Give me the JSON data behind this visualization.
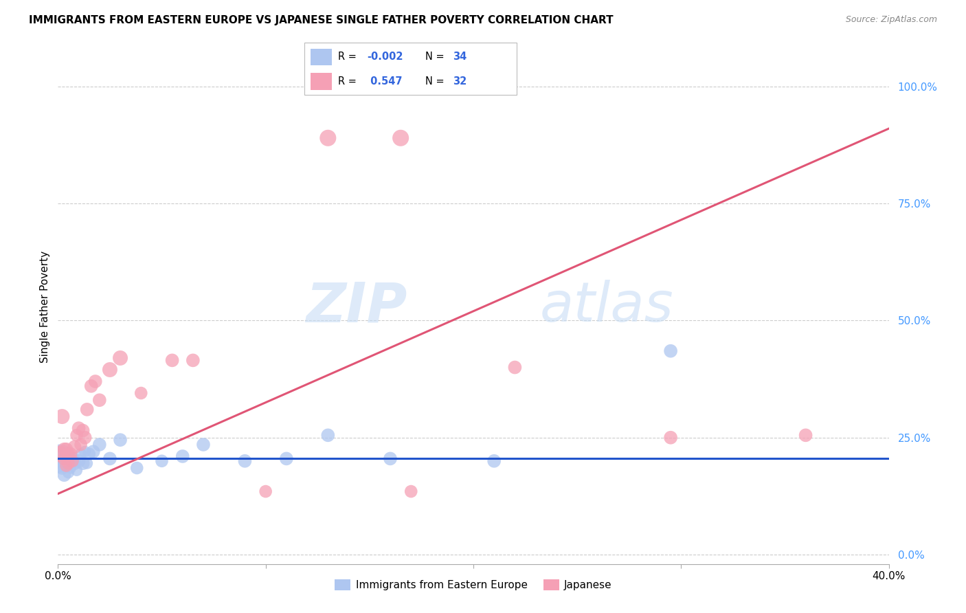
{
  "title": "IMMIGRANTS FROM EASTERN EUROPE VS JAPANESE SINGLE FATHER POVERTY CORRELATION CHART",
  "source": "Source: ZipAtlas.com",
  "ylabel": "Single Father Poverty",
  "ytick_values": [
    0.0,
    0.25,
    0.5,
    0.75,
    1.0
  ],
  "xlim": [
    0.0,
    0.4
  ],
  "ylim": [
    -0.02,
    1.08
  ],
  "legend1_color": "#aec6f0",
  "legend2_color": "#f5a0b5",
  "line1_color": "#2255cc",
  "line2_color": "#e05575",
  "watermark_zip": "ZIP",
  "watermark_atlas": "atlas",
  "series1_label": "Immigrants from Eastern Europe",
  "series2_label": "Japanese",
  "blue_line_y0": 0.205,
  "blue_line_y1": 0.205,
  "pink_line_y0": 0.13,
  "pink_line_y1": 0.91,
  "blue_x": [
    0.001,
    0.002,
    0.002,
    0.003,
    0.003,
    0.004,
    0.004,
    0.005,
    0.005,
    0.006,
    0.006,
    0.007,
    0.008,
    0.009,
    0.01,
    0.011,
    0.012,
    0.013,
    0.014,
    0.015,
    0.017,
    0.02,
    0.025,
    0.03,
    0.038,
    0.05,
    0.06,
    0.07,
    0.09,
    0.11,
    0.13,
    0.16,
    0.21,
    0.295
  ],
  "blue_y": [
    0.205,
    0.205,
    0.185,
    0.195,
    0.17,
    0.205,
    0.19,
    0.195,
    0.175,
    0.2,
    0.185,
    0.205,
    0.195,
    0.18,
    0.2,
    0.215,
    0.195,
    0.22,
    0.195,
    0.215,
    0.22,
    0.235,
    0.205,
    0.245,
    0.185,
    0.2,
    0.21,
    0.235,
    0.2,
    0.205,
    0.255,
    0.205,
    0.2,
    0.435
  ],
  "blue_sizes": [
    900,
    400,
    200,
    300,
    200,
    200,
    150,
    200,
    150,
    200,
    150,
    200,
    200,
    150,
    200,
    150,
    200,
    150,
    150,
    180,
    200,
    200,
    200,
    200,
    180,
    180,
    200,
    200,
    200,
    200,
    200,
    200,
    200,
    200
  ],
  "pink_x": [
    0.001,
    0.002,
    0.003,
    0.003,
    0.004,
    0.004,
    0.005,
    0.005,
    0.006,
    0.007,
    0.008,
    0.009,
    0.01,
    0.011,
    0.012,
    0.013,
    0.014,
    0.016,
    0.018,
    0.02,
    0.025,
    0.03,
    0.04,
    0.055,
    0.065,
    0.1,
    0.13,
    0.165,
    0.17,
    0.22,
    0.295,
    0.36
  ],
  "pink_y": [
    0.215,
    0.295,
    0.225,
    0.205,
    0.225,
    0.19,
    0.215,
    0.195,
    0.215,
    0.2,
    0.23,
    0.255,
    0.27,
    0.235,
    0.265,
    0.25,
    0.31,
    0.36,
    0.37,
    0.33,
    0.395,
    0.42,
    0.345,
    0.415,
    0.415,
    0.135,
    0.89,
    0.89,
    0.135,
    0.4,
    0.25,
    0.255
  ],
  "pink_sizes": [
    300,
    250,
    200,
    200,
    200,
    180,
    200,
    180,
    200,
    180,
    200,
    180,
    200,
    180,
    200,
    200,
    200,
    200,
    200,
    200,
    250,
    250,
    180,
    200,
    200,
    180,
    300,
    300,
    180,
    200,
    200,
    200
  ]
}
